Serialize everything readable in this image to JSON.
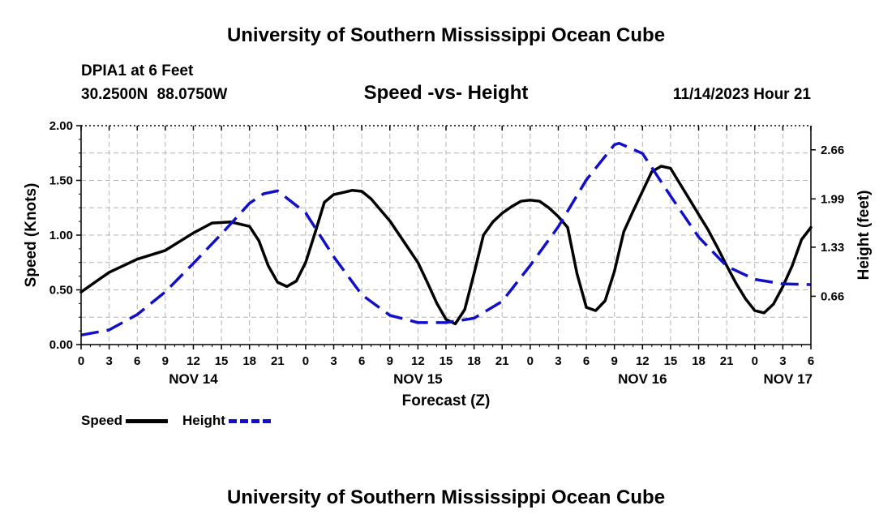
{
  "header": {
    "title": "University of Southern Mississippi Ocean Cube",
    "station": "DPIA1 at 6 Feet",
    "latlon": "30.2500N  88.0750W",
    "subtitle": "Speed -vs- Height",
    "timestamp": "11/14/2023 Hour 21"
  },
  "footer": {
    "title": "University of Southern Mississippi Ocean Cube"
  },
  "legend": {
    "speed_label": "Speed",
    "height_label": "Height"
  },
  "colors": {
    "speed": "#000000",
    "height": "#1010c8",
    "grid": "#b4b4b4"
  },
  "chart_data": {
    "type": "line",
    "title": "Speed -vs- Height",
    "xlabel": "Forecast (Z)",
    "ylabel": "Speed (Knots)",
    "y2label": "Height (feet)",
    "xlim": [
      0,
      78
    ],
    "ylim": [
      0,
      2.0
    ],
    "y2lim": [
      0,
      2.99
    ],
    "grid": true,
    "x_ticks": [
      0,
      3,
      6,
      9,
      12,
      15,
      18,
      21,
      24,
      27,
      30,
      33,
      36,
      39,
      42,
      45,
      48,
      51,
      54,
      57,
      60,
      63,
      66,
      69,
      72,
      75,
      78
    ],
    "x_tick_labels": [
      "0",
      "3",
      "6",
      "9",
      "12",
      "15",
      "18",
      "21",
      "0",
      "3",
      "6",
      "9",
      "12",
      "15",
      "18",
      "21",
      "0",
      "3",
      "6",
      "9",
      "12",
      "15",
      "18",
      "21",
      "0",
      "3",
      "6"
    ],
    "day_labels": [
      {
        "x": 12,
        "label": "NOV 14"
      },
      {
        "x": 36,
        "label": "NOV 15"
      },
      {
        "x": 60,
        "label": "NOV 16"
      },
      {
        "x": 78,
        "label": "NOV 17"
      }
    ],
    "y_ticks": [
      0.0,
      0.5,
      1.0,
      1.5,
      2.0
    ],
    "y_tick_labels": [
      "0.00",
      "0.50",
      "1.00",
      "1.50",
      "2.00"
    ],
    "y2_ticks": [
      0.66,
      1.33,
      1.99,
      2.66
    ],
    "y2_tick_labels": [
      "0.66",
      "1.33",
      "1.99",
      "2.66"
    ],
    "series": [
      {
        "name": "Speed",
        "axis": "left",
        "style": "solid",
        "x": [
          0,
          3,
          6,
          9,
          12,
          14,
          16,
          18,
          19,
          20,
          21,
          22,
          23,
          24,
          25,
          26,
          27,
          28,
          29,
          30,
          31,
          33,
          36,
          37,
          38,
          39,
          40,
          41,
          42,
          43,
          44,
          45,
          46,
          47,
          48,
          49,
          50,
          51,
          52,
          53,
          54,
          55,
          56,
          57,
          58,
          59,
          60,
          61,
          62,
          63,
          64,
          65,
          66,
          67,
          68,
          69,
          70,
          71,
          72,
          73,
          74,
          75,
          76,
          77,
          78
        ],
        "values": [
          0.48,
          0.66,
          0.78,
          0.86,
          1.02,
          1.11,
          1.12,
          1.08,
          0.95,
          0.72,
          0.57,
          0.53,
          0.58,
          0.75,
          1.02,
          1.3,
          1.37,
          1.39,
          1.41,
          1.4,
          1.33,
          1.13,
          0.75,
          0.57,
          0.38,
          0.23,
          0.19,
          0.32,
          0.65,
          1.0,
          1.12,
          1.2,
          1.26,
          1.31,
          1.32,
          1.31,
          1.25,
          1.17,
          1.07,
          0.65,
          0.34,
          0.31,
          0.4,
          0.67,
          1.03,
          1.22,
          1.4,
          1.58,
          1.63,
          1.61,
          1.47,
          1.33,
          1.19,
          1.05,
          0.89,
          0.72,
          0.56,
          0.42,
          0.31,
          0.29,
          0.37,
          0.53,
          0.72,
          0.96,
          1.07
        ]
      },
      {
        "name": "Height",
        "axis": "right",
        "style": "dashed",
        "x": [
          0,
          3,
          6,
          9,
          12,
          15,
          18,
          19.5,
          21,
          24,
          27,
          30,
          33,
          36,
          39,
          42,
          45,
          48,
          51,
          54,
          57,
          57.5,
          60,
          63,
          66,
          69,
          72,
          75,
          78
        ],
        "values": [
          0.13,
          0.2,
          0.41,
          0.72,
          1.11,
          1.51,
          1.93,
          2.06,
          2.1,
          1.8,
          1.2,
          0.68,
          0.4,
          0.3,
          0.3,
          0.36,
          0.59,
          1.08,
          1.61,
          2.25,
          2.73,
          2.75,
          2.61,
          2.03,
          1.47,
          1.07,
          0.89,
          0.83,
          0.82
        ]
      }
    ]
  }
}
